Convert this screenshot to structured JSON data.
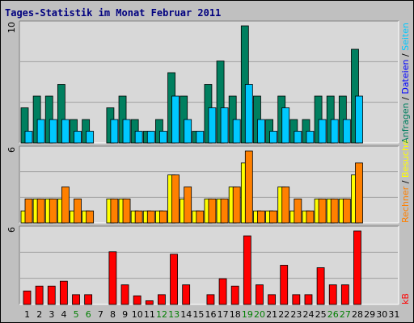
{
  "chart_data": {
    "type": "bar",
    "title": "Tages-Statistik im Monat Februar 2011",
    "colors": {
      "background": "#c0c0c0",
      "plot_area": "#d8d8d8",
      "gridline": "#a0a0a0",
      "title": "#00007f",
      "weekday": "#000000",
      "weekend": "#007f00",
      "requests": "#007f5f",
      "files": "#00c8ff",
      "pages": "#ffff00",
      "visits": "#ff8000",
      "kb": "#ff0000"
    },
    "categories": [
      "1",
      "2",
      "3",
      "4",
      "5",
      "6",
      "7",
      "8",
      "9",
      "10",
      "11",
      "12",
      "13",
      "14",
      "15",
      "16",
      "17",
      "18",
      "19",
      "20",
      "21",
      "22",
      "23",
      "24",
      "25",
      "26",
      "27",
      "28",
      "29",
      "30",
      "31"
    ],
    "weekend_days": [
      "5",
      "6",
      "12",
      "13",
      "19",
      "20",
      "26",
      "27"
    ],
    "panels": [
      {
        "id": "top",
        "ymax": 10,
        "ytick_label": "10",
        "legend": [
          {
            "text": "Anfragen",
            "color": "#007f5f"
          },
          {
            "text": " / ",
            "color": "#000000"
          },
          {
            "text": "Dateien",
            "color": "#0000ff"
          },
          {
            "text": " / ",
            "color": "#000000"
          },
          {
            "text": "Seiten",
            "color": "#00c8ff"
          }
        ],
        "series": [
          {
            "name": "Anfragen",
            "color": "#007f5f",
            "values": [
              3,
              4,
              4,
              5,
              2,
              2,
              0,
              3,
              4,
              2,
              1,
              2,
              6,
              4,
              1,
              5,
              7,
              4,
              10,
              4,
              2,
              4,
              2,
              2,
              4,
              4,
              4,
              8,
              0,
              0,
              0
            ]
          },
          {
            "name": "Dateien",
            "color": "#00c8ff",
            "values": [
              1,
              2,
              2,
              2,
              1,
              1,
              0,
              2,
              2,
              1,
              1,
              1,
              4,
              2,
              1,
              3,
              3,
              2,
              5,
              2,
              1,
              3,
              1,
              1,
              2,
              2,
              2,
              4,
              0,
              0,
              0
            ]
          }
        ]
      },
      {
        "id": "middle",
        "ymax": 6,
        "ytick_label": "6",
        "legend": [
          {
            "text": "Besuche",
            "color": "#ffff00"
          },
          {
            "text": " / ",
            "color": "#000000"
          },
          {
            "text": "Rechner",
            "color": "#ff8000"
          }
        ],
        "series": [
          {
            "name": "Seiten",
            "color": "#ffff00",
            "values": [
              1,
              2,
              2,
              2,
              1,
              1,
              0,
              2,
              2,
              1,
              1,
              1,
              4,
              2,
              1,
              2,
              2,
              3,
              5,
              1,
              1,
              3,
              1,
              1,
              2,
              2,
              2,
              4,
              0,
              0,
              0
            ]
          },
          {
            "name": "Besuche",
            "color": "#ff8000",
            "values": [
              2,
              2,
              2,
              3,
              2,
              1,
              0,
              2,
              2,
              1,
              1,
              1,
              4,
              3,
              1,
              2,
              2,
              3,
              6,
              1,
              1,
              3,
              2,
              1,
              2,
              2,
              2,
              5,
              0,
              0,
              0
            ]
          }
        ]
      },
      {
        "id": "bottom",
        "ymax": 6,
        "ytick_label": "6",
        "legend": [
          {
            "text": "kB",
            "color": "#ff0000"
          }
        ],
        "series": [
          {
            "name": "kB",
            "color": "#ff0000",
            "values": [
              1.1,
              1.5,
              1.5,
              1.9,
              0.8,
              0.8,
              0,
              4.3,
              1.6,
              0.7,
              0.3,
              0.8,
              4.1,
              1.6,
              0,
              0.8,
              2.1,
              1.5,
              5.6,
              1.6,
              0.8,
              3.2,
              0.8,
              0.8,
              3.0,
              1.6,
              1.6,
              6.0,
              0,
              0,
              0
            ]
          }
        ]
      }
    ]
  }
}
